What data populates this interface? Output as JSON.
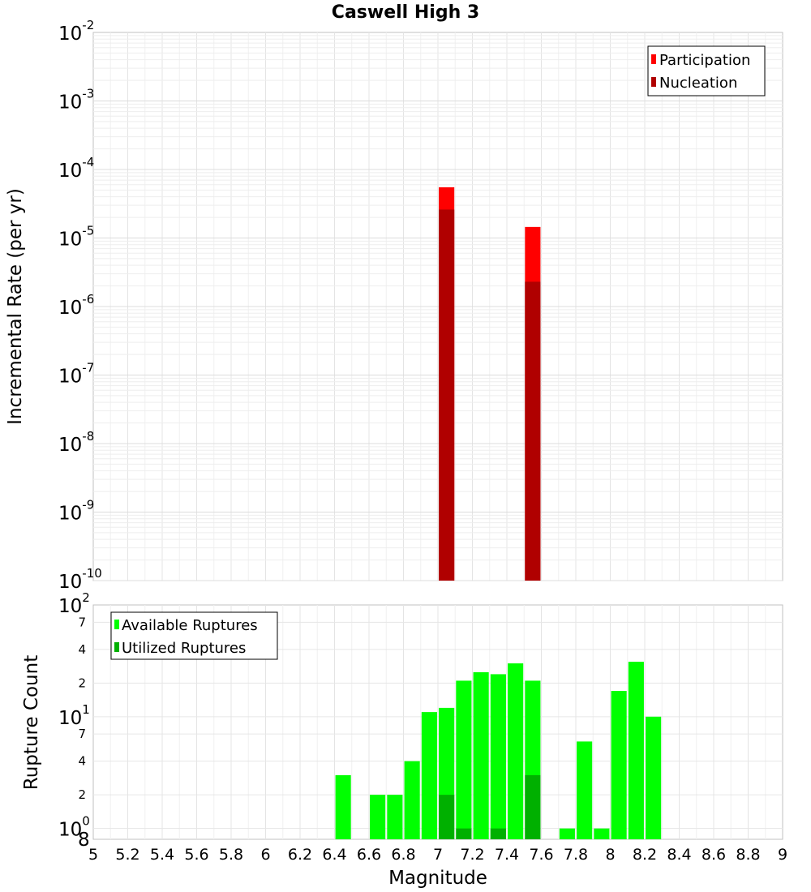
{
  "chart_data": [
    {
      "type": "bar",
      "title": "Caswell High 3",
      "ylabel": "Incremental Rate (per yr)",
      "xlim": [
        5,
        9
      ],
      "ylim": [
        1e-10,
        0.01
      ],
      "yscale": "log",
      "decade_ticks": [
        {
          "base": "10",
          "exp": "-2",
          "value": 0.01
        },
        {
          "base": "10",
          "exp": "-3",
          "value": 0.001
        },
        {
          "base": "10",
          "exp": "-4",
          "value": 0.0001
        },
        {
          "base": "10",
          "exp": "-5",
          "value": 1e-05
        },
        {
          "base": "10",
          "exp": "-6",
          "value": 1e-06
        },
        {
          "base": "10",
          "exp": "-7",
          "value": 1e-07
        },
        {
          "base": "10",
          "exp": "-8",
          "value": 1e-08
        },
        {
          "base": "10",
          "exp": "-9",
          "value": 1e-09
        },
        {
          "base": "10",
          "exp": "-10",
          "value": 1e-10
        }
      ],
      "bar_width": 0.09,
      "legend": {
        "position": "top-right",
        "entries": [
          {
            "label": "Participation",
            "color": "#ff0000"
          },
          {
            "label": "Nucleation",
            "color": "#b00000"
          }
        ]
      },
      "series": [
        {
          "name": "Participation",
          "color": "#ff0000",
          "x": [
            7.05,
            7.55
          ],
          "values": [
            5.5e-05,
            1.45e-05
          ]
        },
        {
          "name": "Nucleation",
          "color": "#b00000",
          "x": [
            7.05,
            7.55
          ],
          "values": [
            2.6e-05,
            2.3e-06
          ]
        }
      ]
    },
    {
      "type": "bar",
      "xlabel": "Magnitude",
      "ylabel": "Rupture Count",
      "xlim": [
        5,
        9
      ],
      "ylim": [
        0.8,
        100
      ],
      "yscale": "log",
      "x_ticks": [
        "5",
        "5.2",
        "5.4",
        "5.6",
        "5.8",
        "6",
        "6.2",
        "6.4",
        "6.6",
        "6.8",
        "7",
        "7.2",
        "7.4",
        "7.6",
        "7.8",
        "8",
        "8.2",
        "8.4",
        "8.6",
        "8.8",
        "9"
      ],
      "decade_ticks": [
        {
          "base": "10",
          "exp": "2",
          "value": 100
        },
        {
          "base": "10",
          "exp": "1",
          "value": 10
        },
        {
          "base": "10",
          "exp": "0",
          "value": 1
        }
      ],
      "minor_ticks": [
        {
          "label": "7",
          "value": 70
        },
        {
          "label": "4",
          "value": 40
        },
        {
          "label": "2",
          "value": 20
        },
        {
          "label": "7",
          "value": 7
        },
        {
          "label": "4",
          "value": 4
        },
        {
          "label": "2",
          "value": 2
        }
      ],
      "bottom_label": "8",
      "bar_width": 0.09,
      "legend": {
        "position": "top-left",
        "entries": [
          {
            "label": "Available Ruptures",
            "color": "#00ff00"
          },
          {
            "label": "Utilized Ruptures",
            "color": "#00b000"
          }
        ]
      },
      "series": [
        {
          "name": "Available Ruptures",
          "color": "#00ff00",
          "x": [
            6.45,
            6.55,
            6.65,
            6.75,
            6.85,
            6.95,
            7.05,
            7.15,
            7.25,
            7.35,
            7.45,
            7.55,
            7.65,
            7.75,
            7.85,
            7.95,
            8.05,
            8.15,
            8.25
          ],
          "values": [
            3,
            0,
            2,
            2,
            4,
            11,
            12,
            21,
            25,
            24,
            30,
            21,
            0,
            1,
            6,
            1,
            17,
            31,
            10
          ]
        },
        {
          "name": "Utilized Ruptures",
          "color": "#00b000",
          "x": [
            7.05,
            7.15,
            7.35,
            7.55
          ],
          "values": [
            2,
            1,
            1,
            3
          ]
        }
      ]
    }
  ]
}
